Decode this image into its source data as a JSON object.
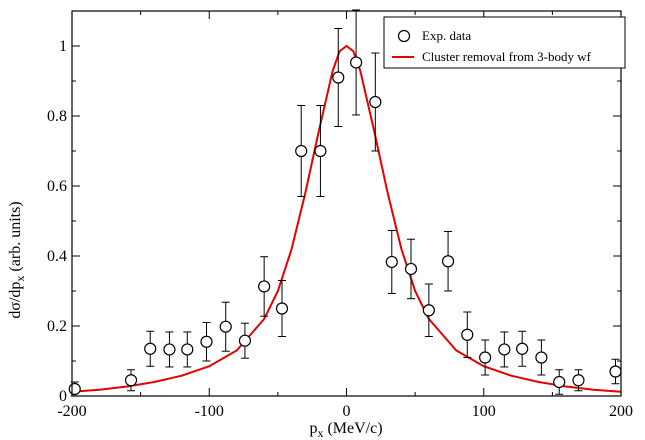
{
  "chart_data": {
    "type": "scatter",
    "xlabel": "p_x (MeV/c)",
    "xlabel_parts": {
      "main": "p",
      "sub": "x",
      "rest": " (MeV/c)"
    },
    "ylabel": "dσ/dp_x (arb. units)",
    "ylabel_parts": {
      "main": "dσ/dp",
      "sub": "x",
      "rest": "  (arb. units)"
    },
    "xlim": [
      -200,
      200
    ],
    "ylim": [
      0,
      1.1
    ],
    "xticks": [
      -200,
      -100,
      0,
      100,
      200
    ],
    "xtick_labels": [
      "-200",
      "-100",
      "0",
      "100",
      "200"
    ],
    "yticks": [
      0,
      0.2,
      0.4,
      0.6,
      0.8,
      1.0
    ],
    "ytick_labels": [
      "0",
      "0.2",
      "0.4",
      "0.6",
      "0.8",
      "1"
    ],
    "grid": false,
    "legend_position": "top-right",
    "series": [
      {
        "name": "Exp. data",
        "kind": "points_with_errorbars",
        "color": "#000000",
        "marker": "open-circle",
        "points": [
          {
            "x": -198,
            "y": 0.02,
            "err": 0.02
          },
          {
            "x": -157,
            "y": 0.045,
            "err": 0.03
          },
          {
            "x": -143,
            "y": 0.135,
            "err": 0.05
          },
          {
            "x": -129,
            "y": 0.133,
            "err": 0.05
          },
          {
            "x": -116,
            "y": 0.133,
            "err": 0.05
          },
          {
            "x": -102,
            "y": 0.155,
            "err": 0.055
          },
          {
            "x": -88,
            "y": 0.198,
            "err": 0.07
          },
          {
            "x": -74,
            "y": 0.158,
            "err": 0.05
          },
          {
            "x": -60,
            "y": 0.313,
            "err": 0.085
          },
          {
            "x": -47,
            "y": 0.25,
            "err": 0.08
          },
          {
            "x": -33,
            "y": 0.7,
            "err": 0.13
          },
          {
            "x": -19,
            "y": 0.7,
            "err": 0.13
          },
          {
            "x": -6,
            "y": 0.91,
            "err": 0.14
          },
          {
            "x": 7,
            "y": 0.953,
            "err": 0.15
          },
          {
            "x": 21,
            "y": 0.84,
            "err": 0.14
          },
          {
            "x": 33,
            "y": 0.383,
            "err": 0.09
          },
          {
            "x": 47,
            "y": 0.363,
            "err": 0.085
          },
          {
            "x": 60,
            "y": 0.245,
            "err": 0.075
          },
          {
            "x": 74,
            "y": 0.385,
            "err": 0.085
          },
          {
            "x": 88,
            "y": 0.175,
            "err": 0.065
          },
          {
            "x": 101,
            "y": 0.11,
            "err": 0.05
          },
          {
            "x": 115,
            "y": 0.133,
            "err": 0.05
          },
          {
            "x": 128,
            "y": 0.135,
            "err": 0.05
          },
          {
            "x": 142,
            "y": 0.11,
            "err": 0.05
          },
          {
            "x": 155,
            "y": 0.04,
            "err": 0.035
          },
          {
            "x": 169,
            "y": 0.045,
            "err": 0.03
          },
          {
            "x": 196,
            "y": 0.07,
            "err": 0.035
          }
        ]
      },
      {
        "name": "Cluster removal from 3-body wf",
        "kind": "line",
        "color": "#e60000",
        "x": [
          -200,
          -180,
          -160,
          -140,
          -120,
          -100,
          -80,
          -60,
          -50,
          -40,
          -30,
          -20,
          -10,
          -5,
          0,
          5,
          10,
          20,
          30,
          40,
          50,
          60,
          80,
          100,
          120,
          140,
          160,
          180,
          200
        ],
        "y": [
          0.012,
          0.018,
          0.027,
          0.04,
          0.058,
          0.085,
          0.13,
          0.22,
          0.3,
          0.42,
          0.58,
          0.76,
          0.93,
          0.985,
          1.0,
          0.985,
          0.93,
          0.76,
          0.58,
          0.42,
          0.3,
          0.22,
          0.13,
          0.085,
          0.058,
          0.04,
          0.027,
          0.018,
          0.012
        ]
      }
    ]
  }
}
